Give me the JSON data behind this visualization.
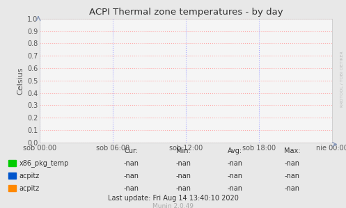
{
  "title": "ACPI Thermal zone temperatures - by day",
  "ylabel": "Celsius",
  "background_color": "#e8e8e8",
  "plot_background": "#f5f5f5",
  "grid_color_h": "#ffaaaa",
  "grid_color_v": "#aaaaff",
  "ylim": [
    0.0,
    1.0
  ],
  "yticks": [
    0.0,
    0.1,
    0.2,
    0.3,
    0.4,
    0.5,
    0.6,
    0.7,
    0.8,
    0.9,
    1.0
  ],
  "xtick_labels": [
    "sob 00:00",
    "sob 06:00",
    "sob 12:00",
    "sob 18:00",
    "nie 00:00"
  ],
  "legend_entries": [
    {
      "label": "x86_pkg_temp",
      "color": "#00cc00"
    },
    {
      "label": "acpitz",
      "color": "#0055cc"
    },
    {
      "label": "acpitz",
      "color": "#ff8800"
    }
  ],
  "table_headers": [
    "Cur:",
    "Min:",
    "Avg:",
    "Max:"
  ],
  "table_values": [
    [
      "-nan",
      "-nan",
      "-nan",
      "-nan"
    ],
    [
      "-nan",
      "-nan",
      "-nan",
      "-nan"
    ],
    [
      "-nan",
      "-nan",
      "-nan",
      "-nan"
    ]
  ],
  "last_update": "Last update: Fri Aug 14 13:40:10 2020",
  "munin_version": "Munin 2.0.49",
  "watermark": "RRDTOOL / TOBI OETIKER",
  "arrow_color": "#8899bb",
  "tick_color": "#555555",
  "spine_color": "#cccccc"
}
